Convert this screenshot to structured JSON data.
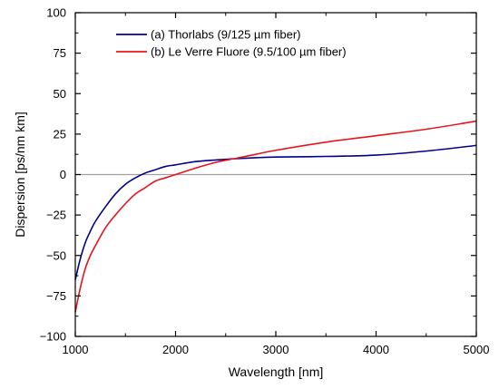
{
  "chart_data": {
    "type": "line",
    "xlabel": "Wavelength [nm]",
    "ylabel": "Dispersion [ps/nm km]",
    "xlim": [
      1000,
      5000
    ],
    "ylim": [
      -100,
      100
    ],
    "x_ticks": [
      1000,
      2000,
      3000,
      4000,
      5000
    ],
    "y_ticks": [
      -100,
      -75,
      -50,
      -25,
      0,
      25,
      50,
      75,
      100
    ],
    "x_tick_labels": [
      "1000",
      "2000",
      "3000",
      "4000",
      "5000"
    ],
    "y_tick_labels": [
      "−100",
      "−75",
      "−50",
      "−25",
      "0",
      "25",
      "50",
      "75",
      "100"
    ],
    "grid": false,
    "zero_line": true,
    "legend_position": "top-left",
    "series": [
      {
        "name": "(a) Thorlabs (9/125 µm fiber)",
        "color": "#00008b",
        "x": [
          1000,
          1050,
          1100,
          1150,
          1200,
          1300,
          1400,
          1500,
          1600,
          1700,
          1800,
          1900,
          2000,
          2200,
          2400,
          2600,
          2800,
          3000,
          3500,
          4000,
          4500,
          5000
        ],
        "y": [
          -65,
          -52,
          -42,
          -35,
          -29,
          -20,
          -12,
          -6,
          -2,
          1,
          3,
          5,
          6,
          8,
          9,
          9.8,
          10.4,
          10.8,
          11.2,
          12,
          14.5,
          18
        ]
      },
      {
        "name": "(b) Le Verre Fluore (9.5/100 µm fiber)",
        "color": "#e8141a",
        "x": [
          1000,
          1050,
          1100,
          1150,
          1200,
          1300,
          1400,
          1500,
          1600,
          1700,
          1800,
          1900,
          2000,
          2200,
          2400,
          2600,
          2800,
          3000,
          3500,
          4000,
          4500,
          5000
        ],
        "y": [
          -85,
          -70,
          -58,
          -50,
          -44,
          -33,
          -25,
          -18,
          -12,
          -8,
          -4,
          -2,
          0,
          4,
          7.5,
          10,
          12.5,
          15,
          20,
          24,
          28,
          33
        ]
      }
    ]
  }
}
